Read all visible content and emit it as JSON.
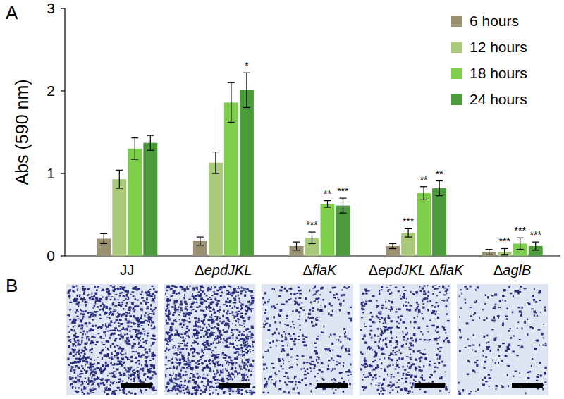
{
  "panel_labels": [
    "A",
    "B"
  ],
  "chart_data": {
    "type": "bar",
    "y_label": "Abs (590 nm)",
    "categories": [
      "JJ",
      "ΔepdJKL",
      "ΔflaK",
      "ΔepdJKL ΔflaK",
      "ΔaglB"
    ],
    "ylim": [
      0,
      3
    ],
    "yticks": [
      0,
      1,
      2,
      3
    ],
    "grid": false,
    "legend": "upper right",
    "series": [
      {
        "name": "6 hours",
        "color": "#9b9171",
        "values": [
          0.21,
          0.18,
          0.12,
          0.12,
          0.05
        ],
        "errors": [
          0.06,
          0.05,
          0.05,
          0.03,
          0.03
        ],
        "significance": [
          null,
          null,
          null,
          null,
          null
        ]
      },
      {
        "name": "12 hours",
        "color": "#a9c97b",
        "values": [
          0.93,
          1.13,
          0.22,
          0.28,
          0.05
        ],
        "errors": [
          0.11,
          0.13,
          0.07,
          0.05,
          0.04
        ],
        "significance": [
          null,
          null,
          "***",
          "***",
          "***"
        ]
      },
      {
        "name": "18 hours",
        "color": "#7dcf4b",
        "values": [
          1.3,
          1.86,
          0.63,
          0.76,
          0.15
        ],
        "errors": [
          0.13,
          0.24,
          0.04,
          0.08,
          0.07
        ],
        "significance": [
          null,
          null,
          "**",
          "**",
          "***"
        ]
      },
      {
        "name": "24 hours",
        "color": "#4c9b3b",
        "values": [
          1.37,
          2.01,
          0.61,
          0.82,
          0.12
        ],
        "errors": [
          0.09,
          0.21,
          0.09,
          0.09,
          0.05
        ],
        "significance": [
          null,
          "*",
          "***",
          "**",
          "***"
        ]
      }
    ]
  }
}
